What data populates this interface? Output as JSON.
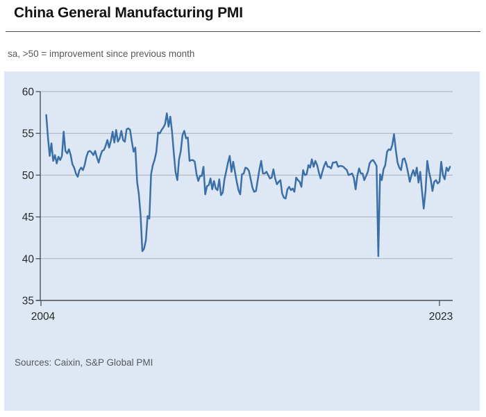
{
  "header": {
    "title": "China General Manufacturing PMI",
    "subtitle": "sa, >50 = improvement since previous month"
  },
  "footer": {
    "sources": "Sources: Caixin, S&P Global PMI"
  },
  "colors": {
    "panel_background": "#dee8f4",
    "line": "#3b6fa8",
    "gridline": "#a8b0b8",
    "axis": "#4a4e54",
    "tick_text": "#26282a",
    "muted_text": "#55575a",
    "title_text": "#131313"
  },
  "chart_data": {
    "type": "line",
    "title": "China General Manufacturing PMI",
    "subtitle": "sa, >50 = improvement since previous month",
    "source": "Sources: Caixin, S&P Global PMI",
    "grid": true,
    "ylim": [
      35,
      60
    ],
    "y_ticks": [
      35,
      40,
      45,
      50,
      55,
      60
    ],
    "x_tick_labels": [
      "2004",
      "2023"
    ],
    "x_tick_months": [
      0,
      228
    ],
    "x_start": {
      "year": 2004,
      "month": 4
    },
    "series": [
      {
        "name": "China General Manufacturing PMI (sa)",
        "monthly_values": {
          "2004": [
            57.2,
            54.5,
            52.3,
            53.8,
            51.7,
            52.4,
            51.4,
            52.2,
            51.8
          ],
          "2005": [
            52.3,
            55.2,
            52.9,
            52.6,
            53.1,
            52.4,
            51.3,
            50.9,
            50.2,
            49.8,
            50.6,
            50.9
          ],
          "2006": [
            50.6,
            51.2,
            52.2,
            52.8,
            52.9,
            52.7,
            52.4,
            52.9,
            52.1,
            51.5,
            52.3,
            52.9
          ],
          "2007": [
            53.0,
            53.5,
            54.2,
            53.3,
            54.1,
            55.2,
            53.9,
            55.4,
            54.0,
            54.4,
            55.3,
            54.2
          ],
          "2008": [
            54.0,
            55.5,
            55.6,
            55.4,
            54.0,
            52.8,
            53.3,
            49.2,
            47.7,
            45.2,
            40.9,
            41.2
          ],
          "2009": [
            42.2,
            45.1,
            44.8,
            50.1,
            51.2,
            51.8,
            52.8,
            55.1,
            55.0,
            55.4,
            55.7,
            56.1
          ],
          "2010": [
            57.4,
            55.8,
            57.0,
            55.2,
            52.7,
            50.4,
            49.4,
            51.9,
            52.9,
            54.8,
            55.3,
            54.4
          ],
          "2011": [
            54.5,
            51.7,
            51.8,
            51.8,
            51.6,
            50.1,
            49.3,
            49.9,
            49.9,
            51.0,
            47.7,
            48.7
          ],
          "2012": [
            48.8,
            49.6,
            48.3,
            49.3,
            48.4,
            48.2,
            49.5,
            47.6,
            47.9,
            49.5,
            50.5,
            51.5
          ],
          "2013": [
            52.3,
            50.4,
            51.6,
            50.4,
            49.2,
            48.2,
            47.7,
            50.1,
            50.2,
            50.9,
            50.8,
            50.5
          ],
          "2014": [
            49.5,
            48.5,
            48.0,
            48.1,
            49.4,
            50.7,
            51.7,
            50.2,
            50.2,
            50.4,
            50.0,
            49.6
          ],
          "2015": [
            49.7,
            50.7,
            49.6,
            48.9,
            49.2,
            49.4,
            47.8,
            47.3,
            47.2,
            48.3,
            48.6,
            48.2
          ],
          "2016": [
            48.4,
            48.0,
            49.7,
            49.4,
            49.2,
            48.6,
            50.6,
            50.0,
            50.1,
            51.2,
            50.9,
            51.9
          ],
          "2017": [
            51.0,
            51.7,
            51.2,
            50.3,
            49.6,
            50.4,
            51.1,
            51.6,
            51.0,
            51.0,
            50.8,
            51.5
          ],
          "2018": [
            51.5,
            51.6,
            51.0,
            51.1,
            51.1,
            51.0,
            50.8,
            50.6,
            50.0,
            50.1,
            50.2,
            49.7
          ],
          "2019": [
            48.3,
            49.9,
            50.8,
            50.2,
            50.2,
            49.4,
            49.9,
            50.4,
            51.4,
            51.7,
            51.8,
            51.5
          ],
          "2020": [
            51.1,
            40.3,
            50.1,
            49.4,
            50.7,
            51.2,
            52.8,
            53.1,
            53.0,
            53.6,
            54.9,
            53.0
          ],
          "2021": [
            51.5,
            50.9,
            50.6,
            51.9,
            52.0,
            51.3,
            50.3,
            49.2,
            50.0,
            50.6,
            49.9,
            50.9
          ],
          "2022": [
            49.1,
            50.4,
            48.1,
            46.0,
            48.1,
            51.7,
            50.4,
            49.5,
            48.1,
            49.2,
            49.4,
            49.0
          ],
          "2023": [
            49.2,
            51.6,
            50.0,
            49.5,
            50.9,
            50.5,
            51.0
          ]
        }
      }
    ]
  }
}
